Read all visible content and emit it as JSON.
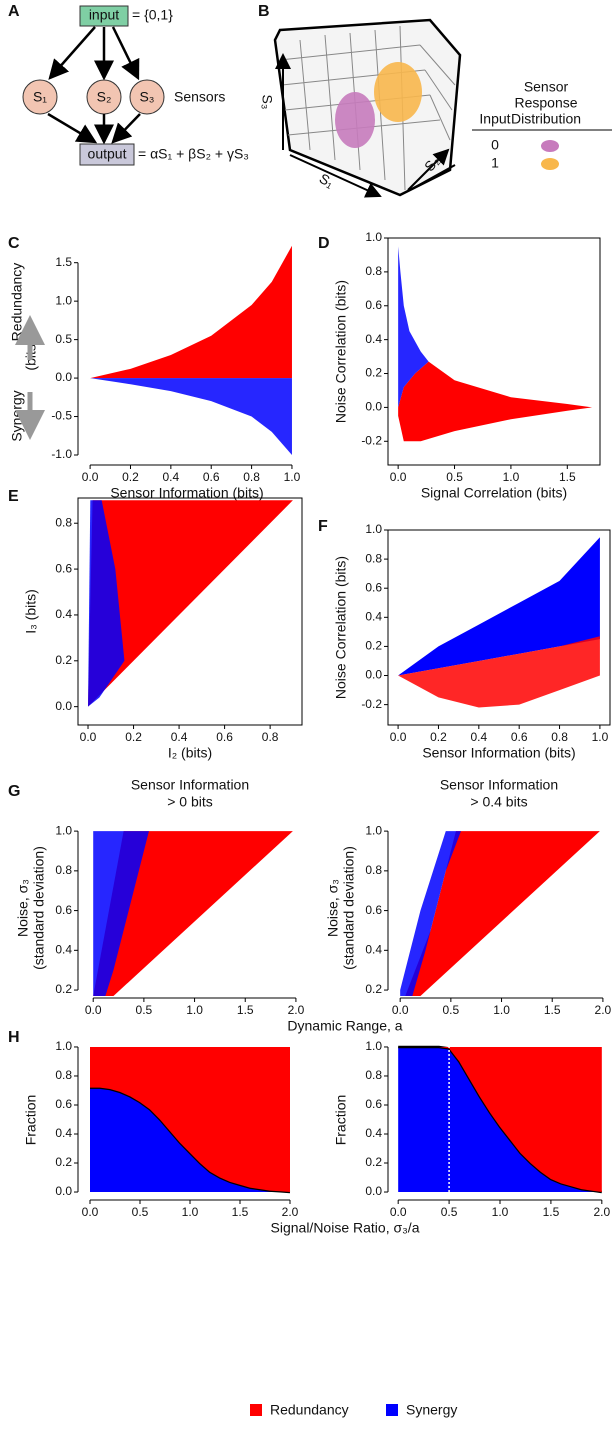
{
  "panel_labels": [
    "A",
    "B",
    "C",
    "D",
    "E",
    "F",
    "G",
    "H"
  ],
  "diagram_a": {
    "input": "input",
    "input_set": "= {0,1}",
    "sensors": [
      "S₁",
      "S₂",
      "S₃"
    ],
    "sensors_label": "Sensors",
    "output": "output",
    "output_formula": "= αS₁ + βS₂ + γS₃"
  },
  "diagram_b": {
    "axes": [
      "S₁",
      "S₂",
      "S₃"
    ],
    "legend_input": "Input",
    "legend_header": [
      "Sensor",
      "Response",
      "Distribution"
    ],
    "rows": [
      {
        "input": "0",
        "color": "#c77bbd"
      },
      {
        "input": "1",
        "color": "#f8b74c"
      }
    ]
  },
  "chart_data": [
    {
      "type": "scatter",
      "xlabel": "Sensor Information (bits)",
      "ylabel": [
        "(bits)"
      ],
      "annotations": [
        "Redundancy",
        "Synergy"
      ],
      "xlim": [
        -0.06,
        1.02
      ],
      "ylim": [
        -1.13,
        1.73
      ],
      "xticks": [
        {
          "value": 0,
          "label": "0.0"
        },
        0.2,
        0.4,
        0.6,
        0.8,
        {
          "value": 1,
          "label": "1.0"
        }
      ],
      "yticks": [
        {
          "value": -1,
          "label": "-1.0"
        },
        -0.5,
        {
          "value": 0,
          "label": "0.0"
        },
        0.5,
        {
          "value": 1,
          "label": "1.0"
        },
        1.5
      ],
      "series": [
        {
          "color": "#ff0000",
          "x": [
            0,
            0.2,
            0.4,
            0.6,
            0.8,
            0.9,
            1.0,
            1.0
          ],
          "y": [
            0,
            0.12,
            0.3,
            0.55,
            0.95,
            1.25,
            1.72,
            0
          ]
        },
        {
          "color": "#0000ff",
          "x": [
            0,
            0.2,
            0.4,
            0.6,
            0.8,
            0.9,
            1.0,
            1.0
          ],
          "y": [
            0,
            -0.08,
            -0.17,
            -0.3,
            -0.5,
            -0.7,
            -1.0,
            0
          ]
        }
      ]
    },
    {
      "type": "scatter",
      "xlabel": "Signal Correlation (bits)",
      "ylabel": [
        "Noise Correlation (bits)"
      ],
      "xlim": [
        -0.09,
        1.79
      ],
      "ylim": [
        -0.34,
        1.0
      ],
      "xticks": [
        {
          "value": 0,
          "label": "0.0"
        },
        0.5,
        {
          "value": 1,
          "label": "1.0"
        },
        1.5
      ],
      "yticks": [
        -0.2,
        {
          "value": 0,
          "label": "0.0"
        },
        0.2,
        0.4,
        0.6,
        0.8,
        {
          "value": 1,
          "label": "1.0"
        }
      ],
      "series": [
        {
          "color": "#ff0000",
          "x": [
            0.0,
            0.05,
            0.15,
            0.27,
            0.5,
            1.0,
            1.5,
            1.72,
            1.5,
            1.0,
            0.5,
            0.2,
            0.05,
            0.0
          ],
          "y": [
            0.0,
            0.12,
            0.2,
            0.27,
            0.16,
            0.06,
            0.02,
            0.0,
            -0.02,
            -0.07,
            -0.14,
            -0.2,
            -0.2,
            -0.05
          ]
        },
        {
          "color": "#0000ff",
          "x": [
            0.0,
            0.0,
            0.02,
            0.05,
            0.1,
            0.2,
            0.27,
            0.15,
            0.05,
            0.0
          ],
          "y": [
            0.0,
            0.95,
            0.8,
            0.6,
            0.45,
            0.33,
            0.27,
            0.2,
            0.12,
            0.0
          ]
        }
      ]
    },
    {
      "type": "scatter",
      "xlabel": "I₂ (bits)",
      "ylabel": [
        "I₃ (bits)"
      ],
      "xlim": [
        -0.044,
        0.94
      ],
      "ylim": [
        -0.08,
        0.91
      ],
      "xticks": [
        {
          "value": 0,
          "label": "0.0"
        },
        0.2,
        0.4,
        0.6,
        0.8
      ],
      "yticks": [
        {
          "value": 0,
          "label": "0.0"
        },
        0.2,
        0.4,
        0.6,
        0.8
      ],
      "series": [
        {
          "color": "#ff0000",
          "x": [
            0,
            0.9,
            0.02
          ],
          "y": [
            0,
            0.9,
            0.9
          ]
        },
        {
          "color": "#0000ff",
          "x": [
            0,
            0.01,
            0.06,
            0.12,
            0.16,
            0.05
          ],
          "y": [
            0,
            0.9,
            0.9,
            0.6,
            0.2,
            0.04
          ]
        }
      ]
    },
    {
      "type": "scatter",
      "xlabel": "Sensor Information (bits)",
      "ylabel": [
        "Noise Correlation (bits)"
      ],
      "xlim": [
        -0.05,
        1.05
      ],
      "ylim": [
        -0.34,
        1.0
      ],
      "xticks": [
        {
          "value": 0,
          "label": "0.0"
        },
        0.2,
        0.4,
        0.6,
        0.8,
        {
          "value": 1,
          "label": "1.0"
        }
      ],
      "yticks": [
        -0.2,
        {
          "value": 0,
          "label": "0.0"
        },
        0.2,
        0.4,
        0.6,
        0.8,
        {
          "value": 1,
          "label": "1.0"
        }
      ],
      "series": [
        {
          "color": "#0000ff",
          "x": [
            0,
            0.2,
            0.4,
            0.6,
            0.8,
            1.0,
            1.0,
            0.8,
            0.6,
            0.4,
            0.2,
            0
          ],
          "y": [
            0,
            0.2,
            0.35,
            0.5,
            0.65,
            0.95,
            0.25,
            0.2,
            0.15,
            0.1,
            0.05,
            0
          ]
        },
        {
          "color": "#ff0000",
          "x": [
            0,
            0.2,
            0.4,
            0.6,
            0.8,
            1.0,
            1.0,
            0.8,
            0.6,
            0.4,
            0.2,
            0
          ],
          "y": [
            0,
            0.05,
            0.1,
            0.15,
            0.2,
            0.27,
            0.0,
            -0.1,
            -0.2,
            -0.22,
            -0.15,
            0
          ]
        }
      ]
    },
    {
      "type": "scatter",
      "title": [
        "Sensor Information",
        "> 0 bits"
      ],
      "xlabel": "Dynamic Range, a",
      "ylabel": [
        "Noise, σ₃",
        "(standard deviation)"
      ],
      "xlim": [
        -0.15,
        2.06
      ],
      "ylim": [
        0.16,
        1.066
      ],
      "xticks": [
        {
          "value": 0,
          "label": "0.0"
        },
        0.5,
        {
          "value": 1,
          "label": "1.0"
        },
        1.5,
        {
          "value": 2,
          "label": "2.0"
        }
      ],
      "yticks": [
        0.2,
        0.4,
        0.6,
        0.8,
        {
          "value": 1,
          "label": "1.0"
        }
      ],
      "series": [
        {
          "color": "#ff0000",
          "x": [
            0.0,
            0.2,
            1.97,
            0.3
          ],
          "y": [
            0.17,
            0.17,
            1.0,
            1.0
          ]
        },
        {
          "color": "#0000ff",
          "x": [
            0.0,
            0.12,
            0.2,
            0.35,
            0.55,
            0.45,
            0.0
          ],
          "y": [
            0.17,
            0.17,
            0.3,
            0.6,
            1.0,
            1.0,
            1.0
          ]
        }
      ]
    },
    {
      "type": "scatter",
      "title": [
        "Sensor Information",
        "> 0.4 bits"
      ],
      "ylabel": [
        "Noise, σ₃",
        "(standard deviation)"
      ],
      "xlim": [
        -0.12,
        2.07
      ],
      "ylim": [
        0.16,
        1.066
      ],
      "xticks": [
        {
          "value": 0,
          "label": "0.0"
        },
        0.5,
        {
          "value": 1,
          "label": "1.0"
        },
        1.5,
        {
          "value": 2,
          "label": "2.0"
        }
      ],
      "yticks": [
        0.2,
        0.4,
        0.6,
        0.8,
        {
          "value": 1,
          "label": "1.0"
        }
      ],
      "series": [
        {
          "color": "#ff0000",
          "x": [
            0.05,
            0.2,
            1.97,
            0.55,
            0.3
          ],
          "y": [
            0.17,
            0.17,
            1.0,
            1.0,
            0.5
          ]
        },
        {
          "color": "#0000ff",
          "x": [
            0.0,
            0.12,
            0.25,
            0.45,
            0.6,
            0.45,
            0.2,
            0.0
          ],
          "y": [
            0.17,
            0.17,
            0.4,
            0.8,
            1.0,
            1.0,
            0.6,
            0.2
          ]
        }
      ]
    },
    {
      "type": "area",
      "xlabel": "Signal/Noise Ratio, σ₃/a",
      "ylabel": [
        "Fraction"
      ],
      "xlim": [
        -0.12,
        2.12
      ],
      "ylim": [
        -0.055,
        1.048
      ],
      "xticks": [
        {
          "value": 0,
          "label": "0.0"
        },
        0.5,
        {
          "value": 1,
          "label": "1.0"
        },
        1.5,
        {
          "value": 2,
          "label": "2.0"
        }
      ],
      "yticks": [
        {
          "value": 0,
          "label": "0.0"
        },
        0.2,
        0.4,
        0.6,
        0.8,
        {
          "value": 1,
          "label": "1.0"
        }
      ],
      "x": [
        0,
        0.1,
        0.2,
        0.3,
        0.4,
        0.5,
        0.6,
        0.7,
        0.8,
        0.9,
        1.0,
        1.1,
        1.2,
        1.3,
        1.4,
        1.5,
        1.6,
        1.7,
        1.8,
        1.9,
        2.0
      ],
      "series": [
        {
          "name": "Synergy",
          "color": "#0000ff",
          "values": [
            0.72,
            0.72,
            0.71,
            0.69,
            0.66,
            0.62,
            0.57,
            0.5,
            0.42,
            0.34,
            0.27,
            0.2,
            0.14,
            0.1,
            0.07,
            0.05,
            0.03,
            0.02,
            0.01,
            0.005,
            0
          ]
        },
        {
          "name": "Redundancy",
          "color": "#ff0000",
          "values": [
            0.28,
            0.28,
            0.29,
            0.31,
            0.34,
            0.38,
            0.43,
            0.5,
            0.58,
            0.66,
            0.73,
            0.8,
            0.86,
            0.9,
            0.93,
            0.95,
            0.97,
            0.98,
            0.99,
            0.995,
            1
          ]
        }
      ]
    },
    {
      "type": "area",
      "ylabel": [
        "Fraction"
      ],
      "vline": 0.5,
      "xlim": [
        -0.1,
        2.1
      ],
      "ylim": [
        -0.055,
        1.048
      ],
      "xticks": [
        {
          "value": 0,
          "label": "0.0"
        },
        0.5,
        {
          "value": 1,
          "label": "1.0"
        },
        1.5,
        {
          "value": 2,
          "label": "2.0"
        }
      ],
      "yticks": [
        {
          "value": 0,
          "label": "0.0"
        },
        0.2,
        0.4,
        0.6,
        0.8,
        {
          "value": 1,
          "label": "1.0"
        }
      ],
      "x": [
        0,
        0.1,
        0.2,
        0.3,
        0.4,
        0.5,
        0.6,
        0.7,
        0.8,
        0.9,
        1.0,
        1.1,
        1.2,
        1.3,
        1.4,
        1.5,
        1.6,
        1.7,
        1.8,
        1.9,
        2.0
      ],
      "series": [
        {
          "color": "#0000ff",
          "values": [
            1,
            1,
            1,
            1,
            1,
            0.99,
            0.9,
            0.78,
            0.66,
            0.55,
            0.45,
            0.36,
            0.27,
            0.2,
            0.14,
            0.09,
            0.06,
            0.04,
            0.02,
            0.01,
            0
          ]
        },
        {
          "color": "#ff0000",
          "values": [
            0,
            0,
            0,
            0,
            0,
            0.01,
            0.1,
            0.22,
            0.34,
            0.45,
            0.55,
            0.64,
            0.73,
            0.8,
            0.86,
            0.91,
            0.94,
            0.96,
            0.98,
            0.99,
            1
          ]
        }
      ]
    }
  ]
}
